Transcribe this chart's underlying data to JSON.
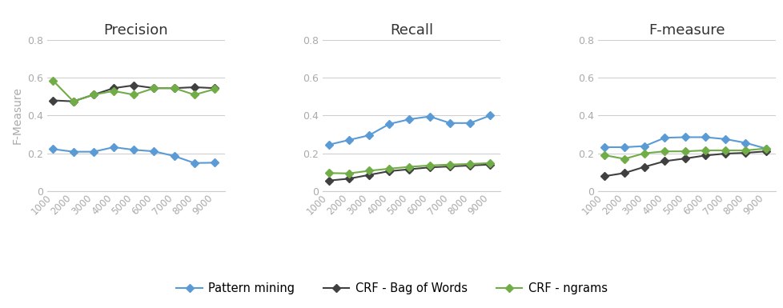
{
  "x": [
    1000,
    2000,
    3000,
    4000,
    5000,
    6000,
    7000,
    8000,
    9000
  ],
  "precision": {
    "pattern_mining": [
      0.222,
      0.208,
      0.208,
      0.232,
      0.218,
      0.21,
      0.185,
      0.148,
      0.15
    ],
    "crf_bow": [
      0.48,
      0.475,
      0.51,
      0.545,
      0.56,
      0.545,
      0.545,
      0.55,
      0.545
    ],
    "crf_ngrams": [
      0.585,
      0.475,
      0.51,
      0.53,
      0.51,
      0.545,
      0.545,
      0.51,
      0.54
    ]
  },
  "recall": {
    "pattern_mining": [
      0.245,
      0.27,
      0.295,
      0.355,
      0.38,
      0.395,
      0.36,
      0.36,
      0.4
    ],
    "crf_bow": [
      0.055,
      0.065,
      0.085,
      0.105,
      0.115,
      0.125,
      0.13,
      0.135,
      0.14
    ],
    "crf_ngrams": [
      0.095,
      0.093,
      0.107,
      0.118,
      0.128,
      0.135,
      0.14,
      0.143,
      0.148
    ]
  },
  "fmeasure": {
    "pattern_mining": [
      0.232,
      0.232,
      0.238,
      0.282,
      0.285,
      0.285,
      0.275,
      0.255,
      0.225
    ],
    "crf_bow": [
      0.078,
      0.095,
      0.128,
      0.158,
      0.172,
      0.188,
      0.198,
      0.202,
      0.21
    ],
    "crf_ngrams": [
      0.19,
      0.17,
      0.2,
      0.21,
      0.21,
      0.215,
      0.215,
      0.215,
      0.225
    ]
  },
  "colors": {
    "pattern_mining": "#5b9bd5",
    "crf_bow": "#404040",
    "crf_ngrams": "#70ad47"
  },
  "titles": [
    "Precision",
    "Recall",
    "F-measure"
  ],
  "ylabel": "F-Measure",
  "ylim": [
    0,
    0.8
  ],
  "yticks": [
    0,
    0.2,
    0.4,
    0.6,
    0.8
  ],
  "legend_labels": [
    "Pattern mining",
    "CRF - Bag of Words",
    "CRF - ngrams"
  ],
  "bg_color": "#ffffff",
  "tick_color": "#aaaaaa",
  "grid_color": "#d0d0d0",
  "spine_color": "#cccccc",
  "title_color": "#333333"
}
